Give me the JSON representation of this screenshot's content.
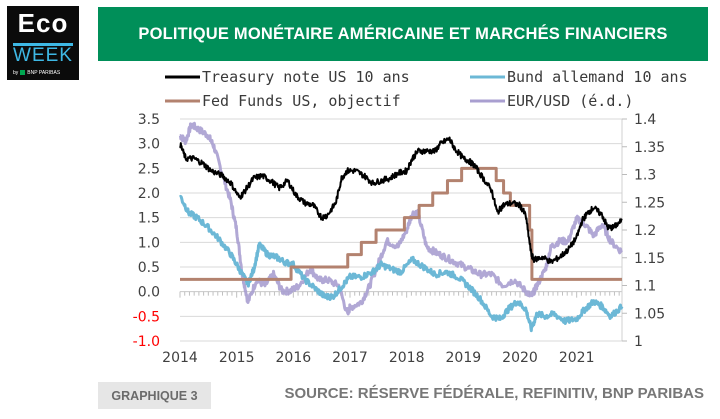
{
  "logo": {
    "line1": "Eco",
    "line2": "WEEK",
    "byline": "by",
    "brand": "BNP PARIBAS"
  },
  "header": {
    "title": "POLITIQUE MONÉTAIRE AMÉRICAINE ET MARCHÉS FINANCIERS"
  },
  "footer": {
    "tag": "GRAPHIQUE 3",
    "source": "SOURCE: RÉSERVE FÉDÉRALE, REFINITIV, BNP PARIBAS"
  },
  "colors": {
    "treasury": "#000000",
    "bund": "#6cb8d6",
    "fed": "#b3826f",
    "eurusd": "#a99fd0",
    "brand": "#008f59",
    "negative_tick": "#ff0000"
  },
  "chart_data": {
    "type": "line",
    "title": "POLITIQUE MONÉTAIRE AMÉRICAINE ET MARCHÉS FINANCIERS",
    "xlabel": "",
    "ylabel": "",
    "x_ticks": [
      "2014",
      "2015",
      "2016",
      "2017",
      "2018",
      "2019",
      "2020",
      "2021"
    ],
    "xlim": [
      2014.0,
      2021.8
    ],
    "y_left": {
      "ticks": [
        "3.5",
        "3.0",
        "2.5",
        "2.0",
        "1.5",
        "1.0",
        "0.5",
        "0.0",
        "-0.5",
        "-1.0"
      ],
      "ylim": [
        -1.0,
        3.5
      ],
      "negative_color": "#ff0000"
    },
    "y_right": {
      "ticks": [
        "1.4",
        "1.35",
        "1.3",
        "1.25",
        "1.2",
        "1.15",
        "1.1",
        "1.05",
        "1"
      ],
      "ylim": [
        1.0,
        1.4
      ],
      "label": "EUR/USD (é.d.)"
    },
    "grid": true,
    "legend": "top",
    "series": [
      {
        "name": "Treasury note US 10 ans",
        "axis": "left",
        "color": "#000000",
        "x": [
          2014.0,
          2014.1,
          2014.25,
          2014.4,
          2014.55,
          2014.75,
          2014.9,
          2015.05,
          2015.15,
          2015.3,
          2015.45,
          2015.6,
          2015.75,
          2015.9,
          2016.05,
          2016.2,
          2016.35,
          2016.5,
          2016.6,
          2016.75,
          2016.85,
          2016.95,
          2017.1,
          2017.25,
          2017.4,
          2017.55,
          2017.7,
          2017.85,
          2018.0,
          2018.1,
          2018.2,
          2018.35,
          2018.5,
          2018.6,
          2018.75,
          2018.85,
          2019.0,
          2019.1,
          2019.2,
          2019.35,
          2019.5,
          2019.6,
          2019.7,
          2019.85,
          2020.0,
          2020.1,
          2020.2,
          2020.25,
          2020.4,
          2020.55,
          2020.7,
          2020.85,
          2021.0,
          2021.1,
          2021.2,
          2021.3,
          2021.45,
          2021.55,
          2021.65,
          2021.8
        ],
        "y": [
          3.0,
          2.7,
          2.7,
          2.6,
          2.45,
          2.35,
          2.2,
          1.9,
          2.05,
          2.3,
          2.35,
          2.25,
          2.1,
          2.25,
          1.95,
          1.8,
          1.75,
          1.5,
          1.55,
          1.8,
          2.3,
          2.45,
          2.45,
          2.35,
          2.2,
          2.25,
          2.3,
          2.4,
          2.45,
          2.7,
          2.85,
          2.85,
          2.85,
          3.0,
          3.1,
          2.9,
          2.7,
          2.65,
          2.55,
          2.3,
          2.05,
          1.6,
          1.75,
          1.8,
          1.75,
          1.55,
          0.75,
          0.65,
          0.7,
          0.6,
          0.7,
          0.85,
          1.1,
          1.45,
          1.6,
          1.7,
          1.55,
          1.3,
          1.3,
          1.45
        ]
      },
      {
        "name": "Bund allemand 10 ans",
        "axis": "left",
        "color": "#6cb8d6",
        "x": [
          2014.0,
          2014.15,
          2014.3,
          2014.5,
          2014.7,
          2014.9,
          2015.05,
          2015.2,
          2015.3,
          2015.4,
          2015.55,
          2015.7,
          2015.85,
          2016.0,
          2016.2,
          2016.4,
          2016.55,
          2016.7,
          2016.85,
          2017.0,
          2017.2,
          2017.4,
          2017.55,
          2017.75,
          2017.9,
          2018.1,
          2018.3,
          2018.5,
          2018.7,
          2018.9,
          2019.1,
          2019.3,
          2019.5,
          2019.65,
          2019.8,
          2019.95,
          2020.1,
          2020.2,
          2020.3,
          2020.45,
          2020.6,
          2020.8,
          2021.0,
          2021.15,
          2021.3,
          2021.45,
          2021.6,
          2021.8
        ],
        "y": [
          1.95,
          1.6,
          1.5,
          1.3,
          1.05,
          0.75,
          0.45,
          0.15,
          0.45,
          0.95,
          0.75,
          0.7,
          0.6,
          0.55,
          0.25,
          0.05,
          -0.1,
          -0.1,
          0.1,
          0.3,
          0.3,
          0.4,
          0.55,
          0.45,
          0.4,
          0.65,
          0.5,
          0.35,
          0.4,
          0.3,
          0.1,
          -0.15,
          -0.5,
          -0.55,
          -0.35,
          -0.2,
          -0.35,
          -0.75,
          -0.45,
          -0.5,
          -0.45,
          -0.6,
          -0.55,
          -0.35,
          -0.2,
          -0.3,
          -0.5,
          -0.3
        ]
      },
      {
        "name": "Fed Funds US, objectif",
        "axis": "left",
        "step": true,
        "color": "#b3826f",
        "x": [
          2014.0,
          2015.96,
          2016.96,
          2017.2,
          2017.46,
          2017.96,
          2018.22,
          2018.46,
          2018.72,
          2018.97,
          2019.58,
          2019.71,
          2019.83,
          2020.17,
          2020.21,
          2021.8
        ],
        "y": [
          0.25,
          0.5,
          0.75,
          1.0,
          1.25,
          1.5,
          1.75,
          2.0,
          2.25,
          2.5,
          2.25,
          2.0,
          1.75,
          1.25,
          0.25,
          0.25
        ]
      },
      {
        "name": "EUR/USD (é.d.)",
        "axis": "right",
        "color": "#a99fd0",
        "x": [
          2014.0,
          2014.1,
          2014.2,
          2014.35,
          2014.5,
          2014.6,
          2014.75,
          2014.9,
          2015.0,
          2015.1,
          2015.2,
          2015.35,
          2015.5,
          2015.65,
          2015.8,
          2015.95,
          2016.1,
          2016.3,
          2016.45,
          2016.6,
          2016.8,
          2016.95,
          2017.0,
          2017.2,
          2017.35,
          2017.5,
          2017.65,
          2017.85,
          2018.0,
          2018.1,
          2018.2,
          2018.35,
          2018.5,
          2018.7,
          2018.9,
          2019.1,
          2019.3,
          2019.5,
          2019.7,
          2019.9,
          2020.1,
          2020.2,
          2020.3,
          2020.45,
          2020.55,
          2020.7,
          2020.85,
          2021.0,
          2021.15,
          2021.3,
          2021.45,
          2021.6,
          2021.8
        ],
        "y": [
          1.37,
          1.36,
          1.39,
          1.38,
          1.37,
          1.35,
          1.3,
          1.25,
          1.2,
          1.12,
          1.07,
          1.11,
          1.1,
          1.12,
          1.09,
          1.09,
          1.1,
          1.13,
          1.11,
          1.11,
          1.1,
          1.05,
          1.06,
          1.07,
          1.1,
          1.14,
          1.18,
          1.17,
          1.2,
          1.23,
          1.23,
          1.17,
          1.16,
          1.15,
          1.14,
          1.13,
          1.12,
          1.12,
          1.1,
          1.11,
          1.09,
          1.08,
          1.1,
          1.13,
          1.17,
          1.18,
          1.18,
          1.22,
          1.21,
          1.19,
          1.21,
          1.18,
          1.16
        ]
      }
    ]
  }
}
